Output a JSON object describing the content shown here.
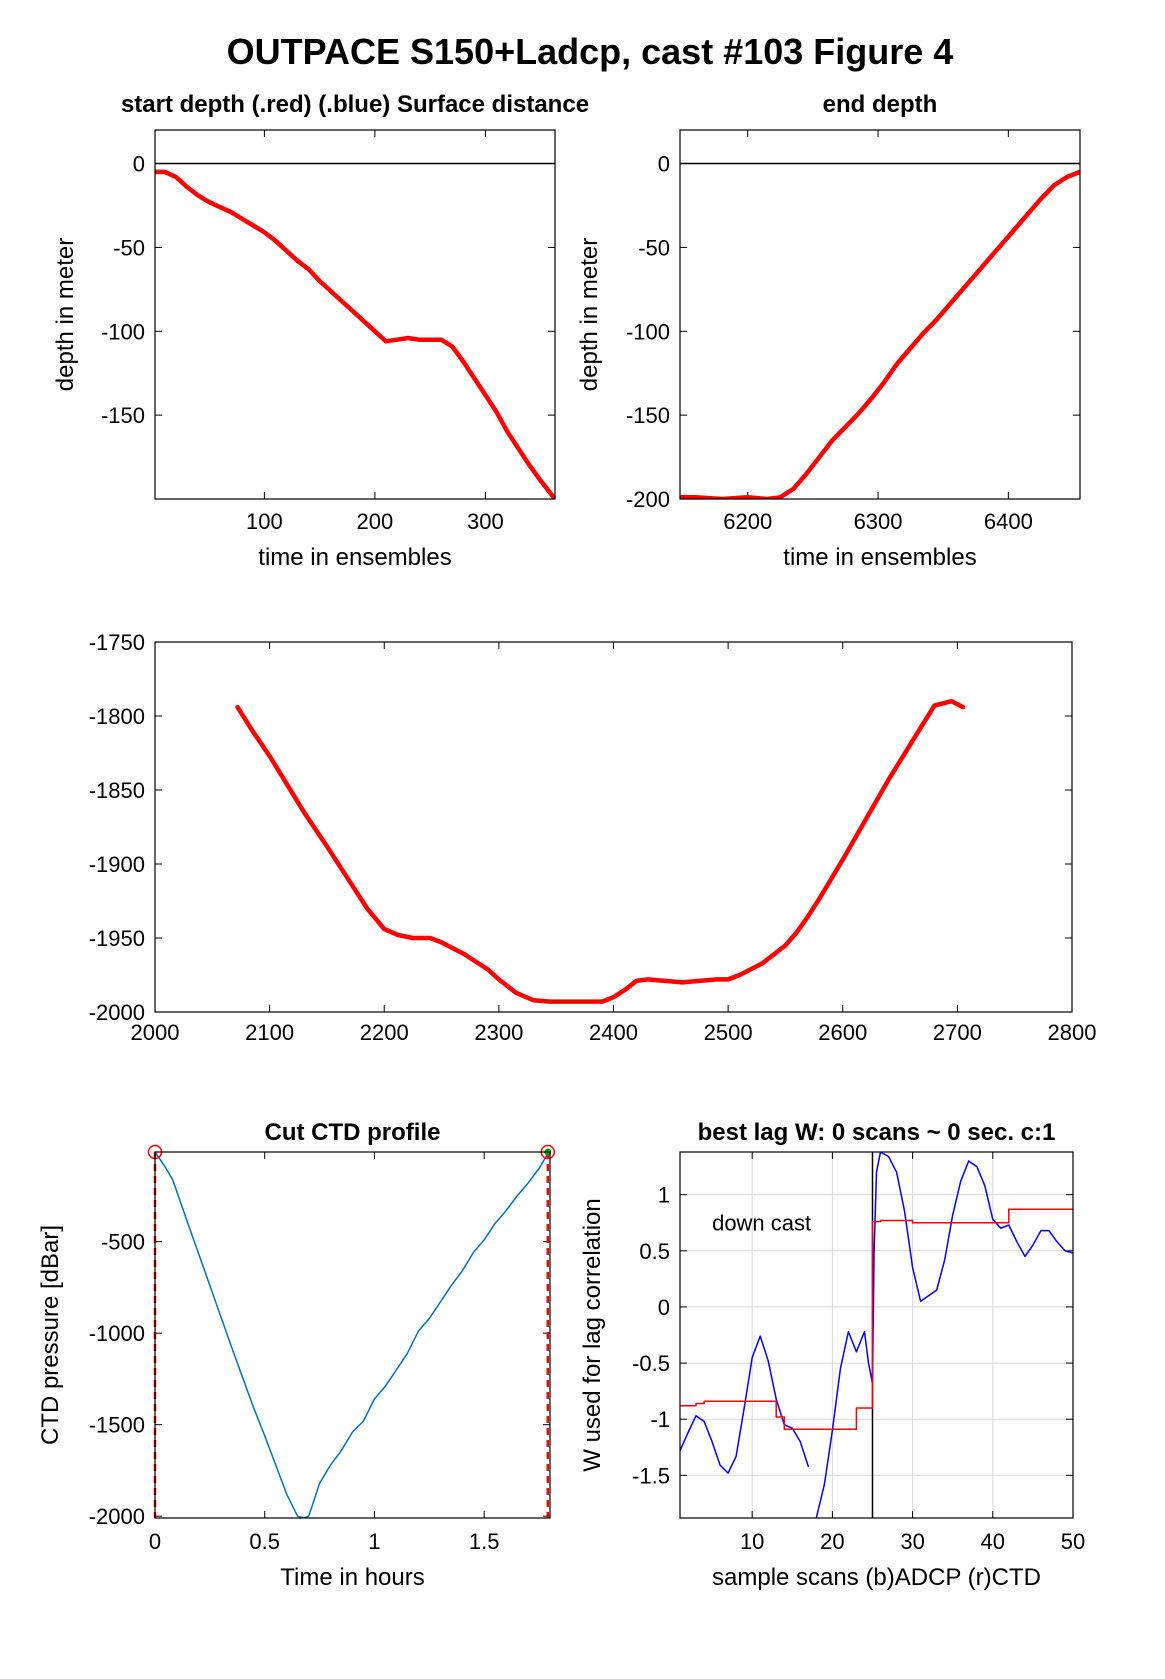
{
  "figure_title": "OUTPACE S150+Ladcp, cast #103    Figure 4",
  "colors": {
    "red": "#ff0000",
    "blue": "#0000ff",
    "ctd_line": "#0072bd",
    "grid": "#d9d9d9",
    "marker_green": "#00aa00"
  },
  "chart_data": [
    {
      "id": "start_depth",
      "type": "line",
      "title": "start depth (.red) (.blue) Surface distance",
      "xlabel": "time in ensembles",
      "ylabel": "depth in meter",
      "xlim": [
        1,
        363
      ],
      "ylim": [
        -200,
        20
      ],
      "xticks": [
        100,
        200,
        300
      ],
      "yticks": [
        0,
        -50,
        -100,
        -150
      ],
      "grid": false,
      "hline": 0,
      "series": [
        {
          "color": "#ff0000",
          "x": [
            1,
            10,
            20,
            30,
            40,
            50,
            60,
            70,
            80,
            90,
            100,
            110,
            120,
            130,
            140,
            150,
            160,
            170,
            180,
            190,
            200,
            210,
            220,
            230,
            240,
            250,
            260,
            270,
            280,
            290,
            300,
            310,
            320,
            330,
            340,
            350,
            363
          ],
          "y": [
            -5,
            -5,
            -8,
            -14,
            -19,
            -23,
            -26,
            -29,
            -33,
            -37,
            -41,
            -46,
            -52,
            -58,
            -63,
            -70,
            -76,
            -82,
            -88,
            -94,
            -100,
            -106,
            -105,
            -104,
            -105,
            -105,
            -105,
            -109,
            -118,
            -128,
            -138,
            -148,
            -160,
            -170,
            -180,
            -189,
            -200
          ]
        }
      ]
    },
    {
      "id": "end_depth",
      "type": "line",
      "title": "end depth",
      "xlabel": "time in ensembles",
      "ylabel": "depth in meter",
      "xlim": [
        6148,
        6455
      ],
      "ylim": [
        -200,
        20
      ],
      "xticks": [
        6200,
        6300,
        6400
      ],
      "yticks": [
        0,
        -50,
        -100,
        -150,
        -200
      ],
      "grid": false,
      "hline": 0,
      "series": [
        {
          "color": "#ff0000",
          "x": [
            6148,
            6160,
            6180,
            6200,
            6215,
            6225,
            6235,
            6245,
            6255,
            6265,
            6275,
            6285,
            6295,
            6305,
            6315,
            6325,
            6335,
            6345,
            6355,
            6365,
            6375,
            6385,
            6395,
            6405,
            6415,
            6425,
            6435,
            6445,
            6455
          ],
          "y": [
            -199,
            -199,
            -200,
            -199,
            -200,
            -199,
            -194,
            -185,
            -175,
            -165,
            -157,
            -149,
            -140,
            -130,
            -119,
            -110,
            -101,
            -93,
            -84,
            -75,
            -66,
            -57,
            -48,
            -39,
            -30,
            -21,
            -13,
            -8,
            -5
          ]
        }
      ]
    },
    {
      "id": "bottom_depth",
      "type": "line",
      "title": "",
      "xlabel": "",
      "ylabel": "",
      "xlim": [
        2000,
        2800
      ],
      "ylim": [
        -2000,
        -1750
      ],
      "xticks": [
        2000,
        2100,
        2200,
        2300,
        2400,
        2500,
        2600,
        2700,
        2800
      ],
      "yticks": [
        -1750,
        -1800,
        -1850,
        -1900,
        -1950,
        -2000
      ],
      "grid": false,
      "series": [
        {
          "color": "#ff0000",
          "x": [
            2072,
            2085,
            2100,
            2115,
            2130,
            2150,
            2170,
            2185,
            2200,
            2212,
            2225,
            2240,
            2250,
            2260,
            2270,
            2280,
            2290,
            2300,
            2315,
            2330,
            2345,
            2360,
            2375,
            2390,
            2400,
            2410,
            2420,
            2430,
            2445,
            2460,
            2475,
            2490,
            2500,
            2510,
            2520,
            2530,
            2540,
            2550,
            2560,
            2570,
            2580,
            2600,
            2620,
            2640,
            2660,
            2680,
            2695,
            2705
          ],
          "y": [
            -1794,
            -1810,
            -1827,
            -1846,
            -1865,
            -1888,
            -1912,
            -1930,
            -1944,
            -1948,
            -1950,
            -1950,
            -1953,
            -1957,
            -1961,
            -1966,
            -1971,
            -1978,
            -1987,
            -1992,
            -1993,
            -1993,
            -1993,
            -1993,
            -1990,
            -1985,
            -1979,
            -1978,
            -1979,
            -1980,
            -1979,
            -1978,
            -1978,
            -1975,
            -1971,
            -1967,
            -1961,
            -1955,
            -1946,
            -1935,
            -1923,
            -1897,
            -1870,
            -1843,
            -1818,
            -1793,
            -1790,
            -1794
          ]
        }
      ]
    },
    {
      "id": "cut_ctd",
      "type": "line",
      "title": "Cut CTD profile",
      "xlabel": "Time in hours",
      "ylabel": "CTD pressure [dBar]",
      "xlim": [
        0,
        1.8
      ],
      "ylim": [
        -2010,
        -10
      ],
      "xticks": [
        0,
        0.5,
        1,
        1.5
      ],
      "xtick_labels": [
        "0",
        "0.5",
        "1",
        "1.5"
      ],
      "yticks": [
        -500,
        -1000,
        -1500,
        -2000
      ],
      "grid": false,
      "series": [
        {
          "color": "#0072bd",
          "x": [
            0,
            0.04,
            0.08,
            0.15,
            0.25,
            0.35,
            0.45,
            0.5,
            0.55,
            0.6,
            0.65,
            0.68,
            0.7,
            0.72,
            0.75,
            0.8,
            0.85,
            0.9,
            0.95,
            1.0,
            1.05,
            1.1,
            1.15,
            1.2,
            1.25,
            1.3,
            1.35,
            1.4,
            1.45,
            1.5,
            1.55,
            1.6,
            1.65,
            1.7,
            1.75,
            1.79
          ],
          "y": [
            -10,
            -80,
            -160,
            -400,
            -740,
            -1080,
            -1410,
            -1560,
            -1720,
            -1880,
            -2000,
            -2010,
            -2000,
            -1930,
            -1820,
            -1720,
            -1640,
            -1540,
            -1480,
            -1360,
            -1290,
            -1200,
            -1110,
            -990,
            -920,
            -830,
            -740,
            -660,
            -560,
            -490,
            -400,
            -330,
            -250,
            -180,
            -100,
            -20
          ]
        }
      ],
      "markers": [
        {
          "x": 0,
          "y": -10,
          "style": "red-circle"
        },
        {
          "x": 1.79,
          "y": -10,
          "style": "red-circle"
        },
        {
          "x": 1.79,
          "y": -10,
          "style": "green-dot"
        }
      ],
      "vlines": [
        0,
        1.79
      ]
    },
    {
      "id": "best_lag",
      "type": "line",
      "title": "best lag W: 0 scans ~ 0 sec.  c:1",
      "xlabel": "sample scans (b)ADCP (r)CTD",
      "ylabel": "W used for lag correlation",
      "xlim": [
        1,
        50
      ],
      "ylim": [
        -1.88,
        1.38
      ],
      "xticks": [
        10,
        20,
        30,
        40,
        50
      ],
      "yticks": [
        1,
        0.5,
        0,
        -0.5,
        -1,
        -1.5
      ],
      "ytick_labels": [
        "1",
        "0.5",
        "0",
        "-0.5",
        "-1",
        "-1.5"
      ],
      "grid": true,
      "vline": 25,
      "annotation": "down cast",
      "series": [
        {
          "name": "ADCP",
          "color": "#0000ff",
          "segments": [
            {
              "x": [
                1,
                2,
                3,
                4,
                5,
                6,
                7,
                8,
                9,
                10,
                11,
                12,
                13,
                14,
                15,
                16,
                17
              ],
              "y": [
                -1.28,
                -1.12,
                -0.97,
                -1.02,
                -1.2,
                -1.41,
                -1.48,
                -1.33,
                -0.9,
                -0.45,
                -0.26,
                -0.48,
                -0.82,
                -1.05,
                -1.08,
                -1.2,
                -1.42
              ]
            },
            {
              "x": [
                17.5,
                18,
                19,
                20,
                21,
                22,
                23,
                24,
                24.5,
                25,
                25.2,
                25.5,
                26,
                27,
                28,
                29,
                30,
                31,
                32,
                33,
                34,
                35,
                36,
                37,
                38,
                39,
                40,
                41,
                42,
                43,
                44,
                45,
                46,
                47,
                48,
                49,
                50
              ],
              "y": [
                -1.95,
                -1.88,
                -1.58,
                -1.1,
                -0.55,
                -0.22,
                -0.4,
                -0.22,
                -0.5,
                -0.68,
                0.5,
                1.2,
                1.38,
                1.34,
                1.2,
                0.85,
                0.35,
                0.05,
                0.1,
                0.15,
                0.42,
                0.82,
                1.12,
                1.3,
                1.25,
                1.08,
                0.78,
                0.7,
                0.73,
                0.58,
                0.45,
                0.55,
                0.68,
                0.68,
                0.58,
                0.5,
                0.48
              ]
            }
          ]
        },
        {
          "name": "CTD",
          "color": "#ff0000",
          "segments": [
            {
              "x": [
                1,
                3,
                3,
                4,
                4,
                13,
                13,
                14,
                14,
                23,
                23,
                25,
                25,
                26,
                26,
                30,
                30,
                42,
                42,
                50
              ],
              "y": [
                -0.88,
                -0.88,
                -0.86,
                -0.86,
                -0.84,
                -0.84,
                -0.98,
                -0.98,
                -1.09,
                -1.09,
                -0.9,
                -0.9,
                0.76,
                0.76,
                0.77,
                0.77,
                0.75,
                0.75,
                0.87,
                0.87
              ]
            }
          ]
        }
      ]
    }
  ]
}
